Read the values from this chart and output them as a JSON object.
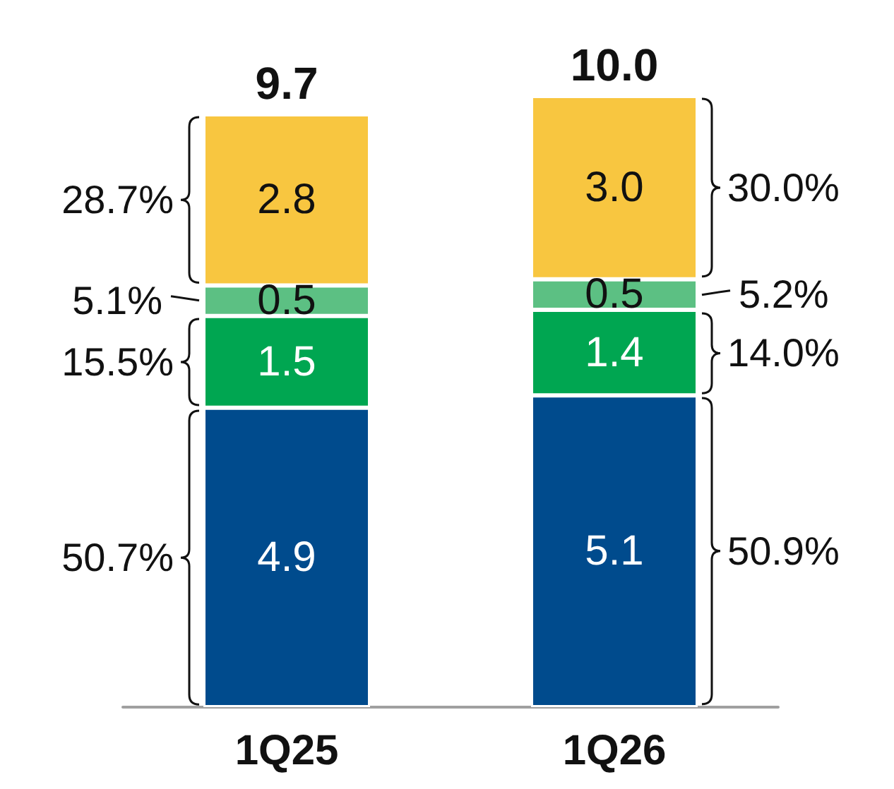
{
  "chart_data": {
    "type": "bar",
    "stacked": true,
    "categories": [
      "1Q25",
      "1Q26"
    ],
    "series": [
      {
        "color": "#004b8d",
        "values": [
          4.9,
          5.1
        ],
        "value_labels": [
          "4.9",
          "5.1"
        ]
      },
      {
        "color": "#00a651",
        "values": [
          1.5,
          1.4
        ],
        "value_labels": [
          "1.5",
          "1.4"
        ]
      },
      {
        "color": "#5cc083",
        "values": [
          0.5,
          0.5
        ],
        "value_labels": [
          "0.5",
          "0.5"
        ]
      },
      {
        "color": "#f8c640",
        "values": [
          2.8,
          3.0
        ],
        "value_labels": [
          "2.8",
          "3.0"
        ]
      }
    ],
    "totals": [
      "9.7",
      "10.0"
    ],
    "annotations": [
      "50.7%",
      "15.5%",
      "5.1%",
      "28.7%",
      "50.9%",
      "14.0%",
      "5.2%",
      "30.0%"
    ]
  }
}
